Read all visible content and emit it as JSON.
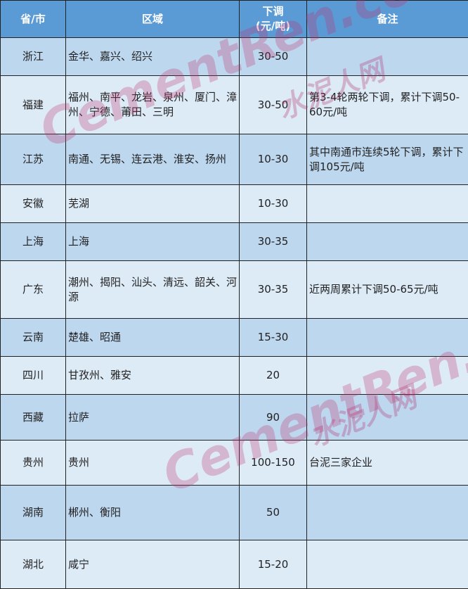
{
  "header": {
    "province": "省/市",
    "region": "区域",
    "drop_line1": "下调",
    "drop_line2": "(元/吨)",
    "note": "备注"
  },
  "rows": [
    {
      "province": "浙江",
      "region": "金华、嘉兴、绍兴",
      "drop": "30-50",
      "note": ""
    },
    {
      "province": "福建",
      "region": "福州、南平、龙岩、泉州、厦门、漳州、宁德、莆田、三明",
      "drop": "30-50",
      "note": "第3-4轮两轮下调，累计下调50-60元/吨"
    },
    {
      "province": "江苏",
      "region": "南通、无锡、连云港、淮安、扬州",
      "drop": "10-30",
      "note": "其中南通市连续5轮下调，累计下调105元/吨"
    },
    {
      "province": "安徽",
      "region": "芜湖",
      "drop": "10-30",
      "note": ""
    },
    {
      "province": "上海",
      "region": "上海",
      "drop": "30-35",
      "note": ""
    },
    {
      "province": "广东",
      "region": "潮州、揭阳、汕头、清远、韶关、河源",
      "drop": "30-35",
      "note": "近两周累计下调50-65元/吨"
    },
    {
      "province": "云南",
      "region": "楚雄、昭通",
      "drop": "15-30",
      "note": ""
    },
    {
      "province": "四川",
      "region": "甘孜州、雅安",
      "drop": "20",
      "note": ""
    },
    {
      "province": "西藏",
      "region": "拉萨",
      "drop": "90",
      "note": ""
    },
    {
      "province": "贵州",
      "region": "贵州",
      "drop": "100-150",
      "note": "台泥三家企业"
    },
    {
      "province": "湖南",
      "region": "郴州、衡阳",
      "drop": "50",
      "note": ""
    },
    {
      "province": "湖北",
      "region": "咸宁",
      "drop": "15-20",
      "note": ""
    }
  ],
  "watermark": {
    "latin": "CementRen.com",
    "chinese": "水泥人网"
  },
  "colors": {
    "header": "#5b9bd5",
    "row_dark": "#bdd7ee",
    "row_light": "#ddebf7"
  }
}
